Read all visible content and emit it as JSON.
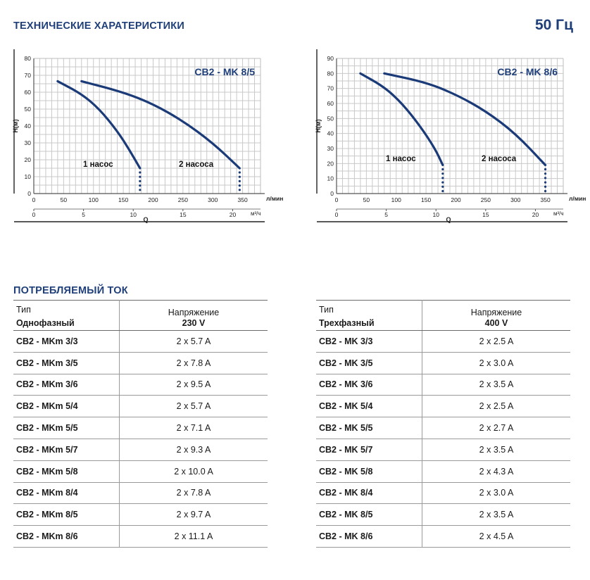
{
  "header": {
    "title": "ТЕХНИЧЕСКИЕ ХАРАТЕРИСТИКИ",
    "frequency": "50 Гц"
  },
  "chart_data": [
    {
      "type": "line",
      "title": "CB2 - MK 8/5",
      "ylabel": "H(м)",
      "xlabel": "Q",
      "x_unit_top": "л/мин",
      "x_unit_bottom": "м³/ч",
      "ylim": [
        0,
        80
      ],
      "yticks": [
        "0",
        "10",
        "20",
        "30",
        "40",
        "50",
        "60",
        "70",
        "80"
      ],
      "xlim_lmin": [
        0,
        380
      ],
      "xticks_lmin": [
        "0",
        "50",
        "100",
        "150",
        "200",
        "250",
        "300",
        "350"
      ],
      "xticks_m3h": [
        "0",
        "5",
        "10",
        "15",
        "20"
      ],
      "grid": true,
      "series": [
        {
          "name": "1 насос",
          "x": [
            40,
            80,
            110,
            140,
            160,
            178
          ],
          "y": [
            66.5,
            59,
            50,
            37,
            26,
            15
          ]
        },
        {
          "name": "2 насоса",
          "x": [
            80,
            150,
            200,
            250,
            300,
            345
          ],
          "y": [
            66.5,
            60,
            53,
            43,
            30,
            15
          ]
        }
      ],
      "annotations": [
        "1 насос",
        "2 насоса"
      ]
    },
    {
      "type": "line",
      "title": "CB2 - MK 8/6",
      "ylabel": "H(м)",
      "xlabel": "Q",
      "x_unit_top": "л/мин",
      "x_unit_bottom": "м³/ч",
      "ylim": [
        0,
        90
      ],
      "yticks": [
        "0",
        "10",
        "20",
        "30",
        "40",
        "50",
        "60",
        "70",
        "80",
        "90"
      ],
      "xlim_lmin": [
        0,
        380
      ],
      "xticks_lmin": [
        "0",
        "50",
        "100",
        "150",
        "200",
        "250",
        "300",
        "350"
      ],
      "xticks_m3h": [
        "0",
        "5",
        "10",
        "15",
        "20"
      ],
      "grid": true,
      "series": [
        {
          "name": "1 насос",
          "x": [
            40,
            80,
            110,
            140,
            165,
            178
          ],
          "y": [
            80,
            71,
            60,
            45,
            30,
            19
          ]
        },
        {
          "name": "2 насоса",
          "x": [
            80,
            150,
            200,
            250,
            300,
            350
          ],
          "y": [
            80,
            74,
            66,
            55,
            40,
            19
          ]
        }
      ],
      "annotations": [
        "1 насос",
        "2 насоса"
      ]
    }
  ],
  "current_section": {
    "title": "ПОТРЕБЛЯЕМЫЙ ТОК"
  },
  "tables": {
    "left": {
      "col1_header": "Тип",
      "col1_sub": "Однофазный",
      "col2_header": "Напряжение",
      "col2_sub": "230 V",
      "rows": [
        {
          "type": "CB2 - MKm 3/3",
          "current": "2 x 5.7 A"
        },
        {
          "type": "CB2 - MKm 3/5",
          "current": "2 x 7.8 A"
        },
        {
          "type": "CB2 - MKm 3/6",
          "current": "2 x 9.5 A"
        },
        {
          "type": "CB2 - MKm 5/4",
          "current": "2 x 5.7 A"
        },
        {
          "type": "CB2 - MKm 5/5",
          "current": "2 x 7.1 A"
        },
        {
          "type": "CB2 - MKm 5/7",
          "current": "2 x 9.3 A"
        },
        {
          "type": "CB2 - MKm 5/8",
          "current": "2 x 10.0 A"
        },
        {
          "type": "CB2 - MKm 8/4",
          "current": "2 x 7.8 A"
        },
        {
          "type": "CB2 - MKm 8/5",
          "current": "2 x 9.7 A"
        },
        {
          "type": "CB2 - MKm 8/6",
          "current": "2 x 11.1 A"
        }
      ]
    },
    "right": {
      "col1_header": "Тип",
      "col1_sub": "Трехфазный",
      "col2_header": "Напряжение",
      "col2_sub": "400 V",
      "rows": [
        {
          "type": "CB2 - MK 3/3",
          "current": "2 x 2.5 A"
        },
        {
          "type": "CB2 - MK 3/5",
          "current": "2 x 3.0 A"
        },
        {
          "type": "CB2 - MK 3/6",
          "current": "2 x 3.5 A"
        },
        {
          "type": "CB2 - MK 5/4",
          "current": "2 x 2.5 A"
        },
        {
          "type": "CB2 - MK 5/5",
          "current": "2 x 2.7 A"
        },
        {
          "type": "CB2 - MK 5/7",
          "current": "2 x 3.5 A"
        },
        {
          "type": "CB2 - MK 5/8",
          "current": "2 x 4.3 A"
        },
        {
          "type": "CB2 - MK 8/4",
          "current": "2 x 3.0 A"
        },
        {
          "type": "CB2 - MK 8/5",
          "current": "2 x 3.5 A"
        },
        {
          "type": "CB2 - MK 8/6",
          "current": "2 x 4.5 A"
        }
      ]
    }
  }
}
